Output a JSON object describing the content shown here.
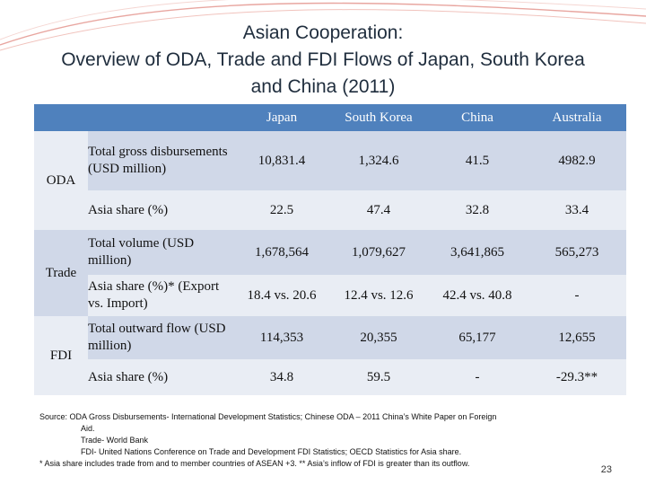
{
  "title": {
    "line1": "Asian Cooperation:",
    "line2": "Overview of ODA, Trade and FDI Flows of Japan, South Korea",
    "line3": "and China (2011)"
  },
  "table": {
    "columns": [
      "Japan",
      "South Korea",
      "China",
      "Australia"
    ],
    "groups": {
      "oda": "ODA",
      "trade": "Trade",
      "fdi": "FDI"
    },
    "rows": [
      {
        "label": "Total gross disbursements (USD million)",
        "values": [
          "10,831.4",
          "1,324.6",
          "41.5",
          "4982.9"
        ]
      },
      {
        "label": "Asia share (%)",
        "values": [
          "22.5",
          "47.4",
          "32.8",
          "33.4"
        ]
      },
      {
        "label": "Total volume (USD million)",
        "values": [
          "1,678,564",
          "1,079,627",
          "3,641,865",
          "565,273"
        ]
      },
      {
        "label": "Asia share (%)* (Export vs. Import)",
        "values": [
          "18.4 vs. 20.6",
          "12.4 vs. 12.6",
          "42.4 vs. 40.8",
          "-"
        ]
      },
      {
        "label": "Total outward flow (USD million)",
        "values": [
          "114,353",
          "20,355",
          "65,177",
          "12,655"
        ]
      },
      {
        "label": "Asia share (%)",
        "values": [
          "34.8",
          "59.5",
          "-",
          "-29.3**"
        ]
      }
    ]
  },
  "footer": {
    "line1": "Source: ODA Gross Disbursements- International Development Statistics; Chinese ODA – 2011 China’s White Paper on Foreign",
    "line2": "Aid.",
    "line3": "Trade- World Bank",
    "line4": "FDI- United Nations Conference on Trade and Development FDI Statistics; OECD Statistics for Asia share.",
    "line5": "* Asia share includes trade from and to member countries of ASEAN +3.  ** Asia’s inflow of FDI is greater than its outflow."
  },
  "page_number": "23",
  "colors": {
    "header": "#4f81bd",
    "row_dark": "#d0d8e8",
    "row_light": "#e9edf4",
    "decor": "#e8a6a0"
  }
}
